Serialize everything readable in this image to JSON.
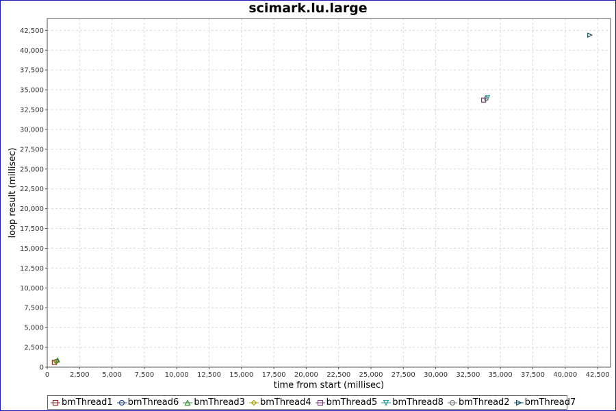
{
  "chart_data": {
    "type": "scatter",
    "title": "scimark.lu.large",
    "xlabel": "time from start (millisec)",
    "ylabel": "loop result (millisec)",
    "xlim": [
      0,
      43500
    ],
    "ylim": [
      0,
      44000
    ],
    "xticks": [
      0,
      2500,
      5000,
      7500,
      10000,
      12500,
      15000,
      17500,
      20000,
      22500,
      25000,
      27500,
      30000,
      32500,
      35000,
      37500,
      40000,
      42500
    ],
    "xtick_labels": [
      "0",
      "2,500",
      "5,000",
      "7,500",
      "10,000",
      "12,500",
      "15,000",
      "17,500",
      "20,000",
      "22,500",
      "25,000",
      "27,500",
      "30,000",
      "32,500",
      "35,000",
      "37,500",
      "40,000",
      "42,500"
    ],
    "yticks": [
      0,
      2500,
      5000,
      7500,
      10000,
      12500,
      15000,
      17500,
      20000,
      22500,
      25000,
      27500,
      30000,
      32500,
      35000,
      37500,
      40000,
      42500
    ],
    "ytick_labels": [
      "0",
      "2,500",
      "5,000",
      "7,500",
      "10,000",
      "12,500",
      "15,000",
      "17,500",
      "20,000",
      "22,500",
      "25,000",
      "27,500",
      "30,000",
      "32,500",
      "35,000",
      "37,500",
      "40,000",
      "42,500"
    ],
    "grid": true,
    "legend_position": "bottom",
    "series": [
      {
        "name": "bmThread1",
        "marker": "square",
        "color": "#8b2c2c",
        "points": [
          [
            550,
            600
          ]
        ]
      },
      {
        "name": "bmThread6",
        "marker": "circle",
        "color": "#1f3f7f",
        "points": [
          [
            700,
            750
          ]
        ]
      },
      {
        "name": "bmThread3",
        "marker": "triangle-up",
        "color": "#2e8b2e",
        "points": [
          [
            800,
            900
          ]
        ]
      },
      {
        "name": "bmThread4",
        "marker": "diamond",
        "color": "#a3a300",
        "points": [
          [
            650,
            700
          ]
        ]
      },
      {
        "name": "bmThread5",
        "marker": "square",
        "color": "#7a3a7a",
        "points": [
          [
            33700,
            33700
          ]
        ]
      },
      {
        "name": "bmThread8",
        "marker": "triangle-down",
        "color": "#2aa0a0",
        "points": [
          [
            34000,
            34000
          ]
        ]
      },
      {
        "name": "bmThread2",
        "marker": "circle",
        "color": "#777777",
        "points": [
          [
            33900,
            33900
          ]
        ]
      },
      {
        "name": "bmThread7",
        "marker": "triangle-right",
        "color": "#1f4f5f",
        "points": [
          [
            41900,
            41900
          ]
        ]
      }
    ]
  }
}
